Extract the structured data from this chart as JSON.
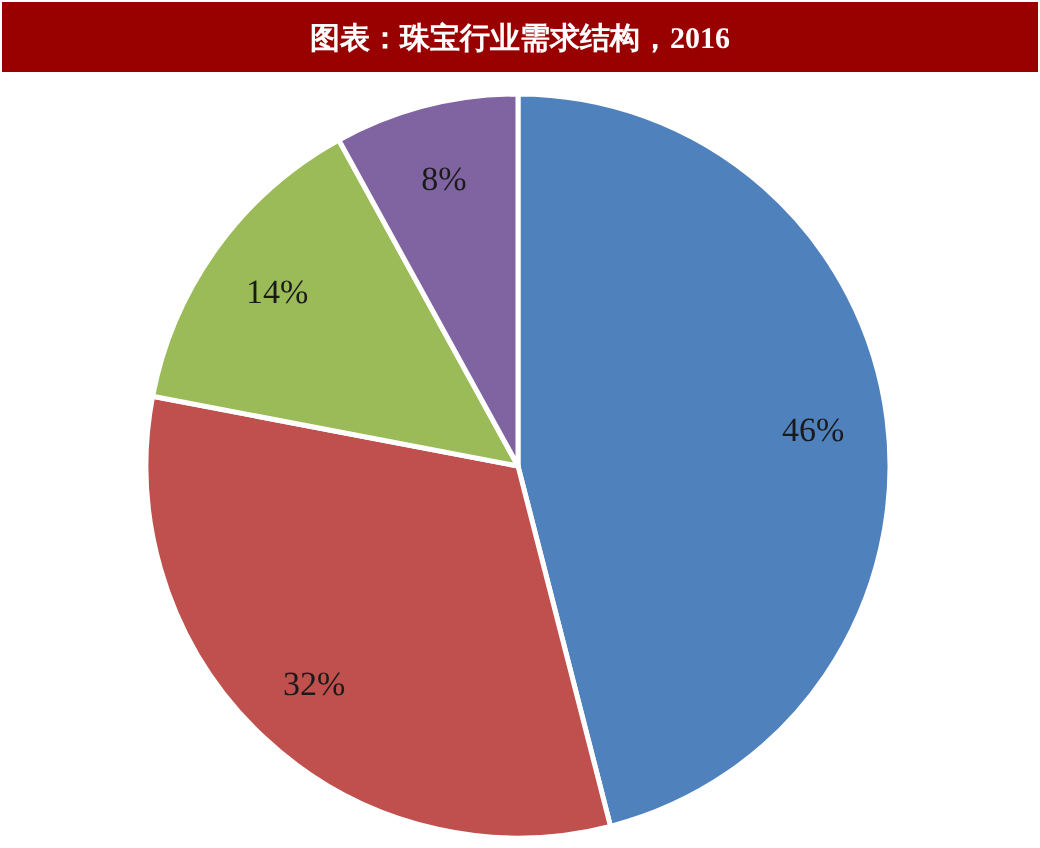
{
  "chart_data": {
    "type": "pie",
    "title": "图表：珠宝行业需求结构，2016",
    "categories": [
      null,
      null,
      null,
      null
    ],
    "values": [
      46,
      32,
      14,
      8
    ],
    "colors": [
      "#4f81bd",
      "#c0504d",
      "#9bbb59",
      "#8064a2"
    ],
    "value_labels": [
      "46%",
      "32%",
      "14%",
      "8%"
    ]
  }
}
